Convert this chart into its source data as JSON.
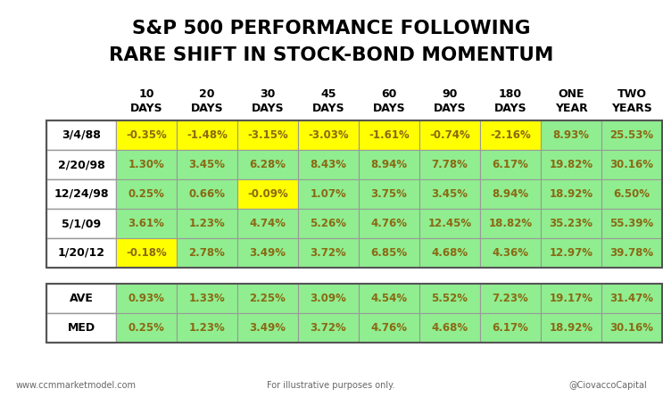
{
  "title_line1": "S&P 500 PERFORMANCE FOLLOWING",
  "title_line2": "RARE SHIFT IN STOCK-BOND MOMENTUM",
  "col_headers_line1": [
    "10",
    "20",
    "30",
    "45",
    "60",
    "90",
    "180",
    "ONE",
    "TWO"
  ],
  "col_headers_line2": [
    "DAYS",
    "DAYS",
    "DAYS",
    "DAYS",
    "DAYS",
    "DAYS",
    "DAYS",
    "YEAR",
    "YEARS"
  ],
  "row_labels": [
    "3/4/88",
    "2/20/98",
    "12/24/98",
    "5/1/09",
    "1/20/12"
  ],
  "data": [
    [
      "-0.35%",
      "-1.48%",
      "-3.15%",
      "-3.03%",
      "-1.61%",
      "-0.74%",
      "-2.16%",
      "8.93%",
      "25.53%"
    ],
    [
      "1.30%",
      "3.45%",
      "6.28%",
      "8.43%",
      "8.94%",
      "7.78%",
      "6.17%",
      "19.82%",
      "30.16%"
    ],
    [
      "0.25%",
      "0.66%",
      "-0.09%",
      "1.07%",
      "3.75%",
      "3.45%",
      "8.94%",
      "18.92%",
      "6.50%"
    ],
    [
      "3.61%",
      "1.23%",
      "4.74%",
      "5.26%",
      "4.76%",
      "12.45%",
      "18.82%",
      "35.23%",
      "55.39%"
    ],
    [
      "-0.18%",
      "2.78%",
      "3.49%",
      "3.72%",
      "6.85%",
      "4.68%",
      "4.36%",
      "12.97%",
      "39.78%"
    ]
  ],
  "ave_row": [
    "0.93%",
    "1.33%",
    "2.25%",
    "3.09%",
    "4.54%",
    "5.52%",
    "7.23%",
    "19.17%",
    "31.47%"
  ],
  "med_row": [
    "0.25%",
    "1.23%",
    "3.49%",
    "3.72%",
    "4.76%",
    "4.68%",
    "6.17%",
    "18.92%",
    "30.16%"
  ],
  "cell_colors": [
    [
      "#FFFF00",
      "#FFFF00",
      "#FFFF00",
      "#FFFF00",
      "#FFFF00",
      "#FFFF00",
      "#FFFF00",
      "#90EE90",
      "#90EE90"
    ],
    [
      "#90EE90",
      "#90EE90",
      "#90EE90",
      "#90EE90",
      "#90EE90",
      "#90EE90",
      "#90EE90",
      "#90EE90",
      "#90EE90"
    ],
    [
      "#90EE90",
      "#90EE90",
      "#FFFF00",
      "#90EE90",
      "#90EE90",
      "#90EE90",
      "#90EE90",
      "#90EE90",
      "#90EE90"
    ],
    [
      "#90EE90",
      "#90EE90",
      "#90EE90",
      "#90EE90",
      "#90EE90",
      "#90EE90",
      "#90EE90",
      "#90EE90",
      "#90EE90"
    ],
    [
      "#FFFF00",
      "#90EE90",
      "#90EE90",
      "#90EE90",
      "#90EE90",
      "#90EE90",
      "#90EE90",
      "#90EE90",
      "#90EE90"
    ]
  ],
  "ave_med_colors": [
    "#90EE90",
    "#90EE90",
    "#90EE90",
    "#90EE90",
    "#90EE90",
    "#90EE90",
    "#90EE90",
    "#90EE90",
    "#90EE90"
  ],
  "label_bg": "#FFFFFF",
  "text_color": "#8B6914",
  "label_text_color": "#000000",
  "header_text_color": "#000000",
  "border_color": "#999999",
  "background_color": "#FFFFFF",
  "footer_left": "www.ccmmarketmodel.com",
  "footer_center": "For illustrative purposes only.",
  "footer_right": "@CiovaccoCapital"
}
